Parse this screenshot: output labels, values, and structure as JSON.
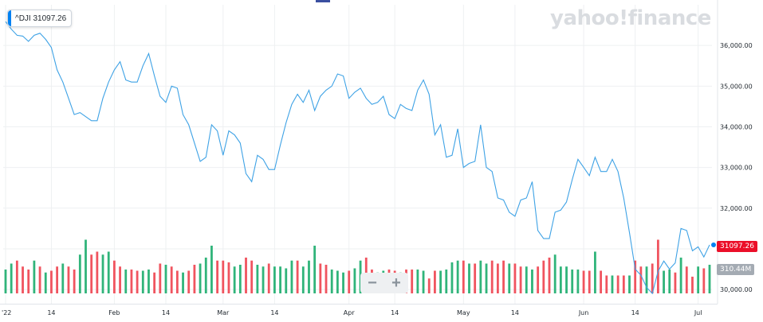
{
  "legend": {
    "label": "^DJI 31097.26",
    "color": "#0081f2"
  },
  "watermark": "yahoo!finance",
  "zoom": {
    "minus": "−",
    "plus": "+"
  },
  "price_tag": "31097.26",
  "volume_tag": "310.44M",
  "colors": {
    "line": "#3ea2e5",
    "up": "#30b47a",
    "down": "#f0545f",
    "grid": "#eef0f2",
    "dot": "#0081f2"
  },
  "chart_data": {
    "type": "line",
    "ylim": [
      29650,
      37000
    ],
    "yticks": [
      30000,
      31000,
      32000,
      33000,
      34000,
      35000,
      36000
    ],
    "ytick_labels": [
      "30,000.00",
      "31,000.00",
      "32,000.00",
      "33,000.00",
      "34,000.00",
      "35,000.00",
      "36,000.00"
    ],
    "xticks": [
      {
        "label": "'22",
        "index": 0
      },
      {
        "label": "14",
        "index": 8
      },
      {
        "label": "Feb",
        "index": 19
      },
      {
        "label": "14",
        "index": 28
      },
      {
        "label": "Mar",
        "index": 38
      },
      {
        "label": "14",
        "index": 47
      },
      {
        "label": "Apr",
        "index": 60
      },
      {
        "label": "14",
        "index": 68
      },
      {
        "label": "May",
        "index": 80
      },
      {
        "label": "14",
        "index": 89
      },
      {
        "label": "Jun",
        "index": 101
      },
      {
        "label": "14",
        "index": 110
      },
      {
        "label": "Jul",
        "index": 121
      }
    ],
    "series": [
      {
        "values": [
          36585,
          36400,
          36250,
          36230,
          36100,
          36250,
          36300,
          36150,
          35950,
          35400,
          35100,
          34700,
          34300,
          34350,
          34250,
          34150,
          34150,
          34700,
          35100,
          35400,
          35600,
          35150,
          35100,
          35100,
          35500,
          35800,
          35250,
          34750,
          34600,
          35000,
          34950,
          34300,
          34050,
          33600,
          33150,
          33250,
          34050,
          33900,
          33300,
          33900,
          33800,
          33600,
          32850,
          32650,
          33300,
          33200,
          32950,
          32950,
          33550,
          34100,
          34550,
          34800,
          34600,
          34900,
          34400,
          34750,
          34900,
          35000,
          35300,
          35250,
          34700,
          34850,
          34950,
          34700,
          34550,
          34600,
          34750,
          34300,
          34200,
          34550,
          34450,
          34400,
          34900,
          35150,
          34800,
          33800,
          34050,
          33250,
          33300,
          33950,
          33000,
          33100,
          33150,
          34050,
          33000,
          32900,
          32250,
          32200,
          31900,
          31800,
          32200,
          32250,
          32650,
          31450,
          31250,
          31250,
          31900,
          31950,
          32150,
          32700,
          33200,
          33000,
          32800,
          33250,
          32900,
          32900,
          33200,
          32900,
          32250,
          31400,
          30500,
          30350,
          30050,
          29900,
          30450,
          30700,
          30500,
          30650,
          31500,
          31450,
          30950,
          31050,
          30800,
          31097
        ]
      }
    ],
    "volume": {
      "ylim": [
        0,
        100
      ],
      "values": [
        40,
        50,
        55,
        45,
        40,
        55,
        45,
        35,
        38,
        45,
        50,
        45,
        40,
        65,
        90,
        65,
        70,
        65,
        70,
        55,
        45,
        40,
        40,
        38,
        38,
        40,
        35,
        50,
        48,
        45,
        38,
        35,
        38,
        48,
        50,
        60,
        80,
        55,
        55,
        52,
        45,
        48,
        60,
        55,
        48,
        45,
        50,
        45,
        45,
        42,
        55,
        55,
        45,
        55,
        80,
        50,
        48,
        40,
        38,
        35,
        38,
        42,
        55,
        60,
        40,
        35,
        38,
        40,
        38,
        35,
        40,
        40,
        40,
        38,
        25,
        38,
        38,
        40,
        52,
        55,
        55,
        50,
        50,
        55,
        50,
        55,
        50,
        55,
        50,
        50,
        45,
        45,
        40,
        45,
        55,
        60,
        65,
        45,
        45,
        40,
        40,
        38,
        38,
        70,
        38,
        30,
        30,
        30,
        30,
        30,
        55,
        45,
        45,
        50,
        90,
        38,
        40,
        35,
        60,
        45,
        28,
        45,
        42,
        48
      ],
      "up": [
        1,
        1,
        0,
        0,
        0,
        1,
        0,
        1,
        0,
        0,
        1,
        0,
        0,
        1,
        1,
        0,
        0,
        1,
        1,
        0,
        0,
        1,
        0,
        0,
        1,
        1,
        0,
        0,
        1,
        0,
        0,
        1,
        0,
        0,
        1,
        1,
        1,
        0,
        0,
        0,
        1,
        1,
        0,
        0,
        1,
        1,
        0,
        1,
        1,
        1,
        1,
        0,
        1,
        1,
        1,
        0,
        0,
        1,
        1,
        1,
        0,
        1,
        1,
        0,
        0,
        1,
        1,
        0,
        0,
        1,
        0,
        0,
        1,
        1,
        0,
        0,
        1,
        1,
        1,
        1,
        0,
        1,
        0,
        1,
        1,
        0,
        0,
        0,
        1,
        0,
        0,
        1,
        1,
        0,
        0,
        0,
        1,
        1,
        1,
        1,
        1,
        0,
        0,
        1,
        0,
        0,
        1,
        0,
        0,
        1,
        0,
        0,
        1,
        0,
        0,
        1,
        1,
        0,
        1,
        0,
        0,
        1,
        0,
        1
      ]
    }
  }
}
